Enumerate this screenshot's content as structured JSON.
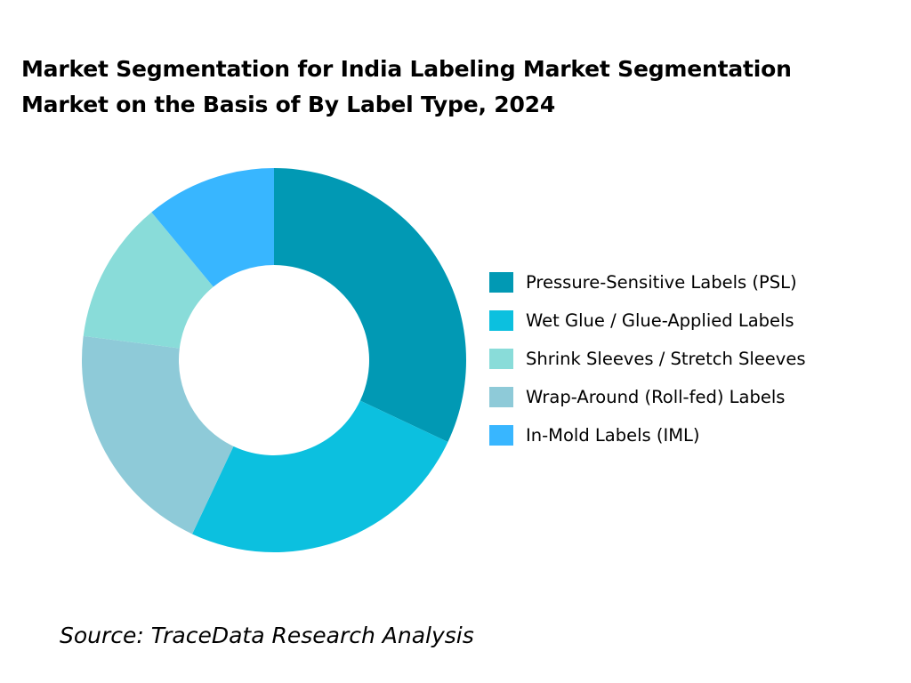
{
  "chart_data": {
    "type": "pie",
    "donut": true,
    "title": "Market Segmentation for India Labeling Market Segmentation Market on the Basis of By Label Type, 2024",
    "unit": "%",
    "start_angle": "12 o'clock",
    "direction": "clockwise",
    "slices": [
      {
        "name": "Pressure-Sensitive Labels (PSL)",
        "value": 32,
        "color": "#0199b4"
      },
      {
        "name": "Wet Glue / Glue-Applied Labels",
        "value": 25,
        "color": "#0cc0df"
      },
      {
        "name": "Wrap-Around (Roll-fed) Labels",
        "value": 20,
        "color": "#8ecad8"
      },
      {
        "name": "Shrink Sleeves / Stretch Sleeves",
        "value": 12,
        "color": "#89dcd9"
      },
      {
        "name": "In-Mold Labels (IML)",
        "value": 11,
        "color": "#38b6ff"
      }
    ],
    "legend": {
      "placement": "right",
      "items": [
        {
          "label": "Pressure-Sensitive Labels (PSL)",
          "color": "#0199b4"
        },
        {
          "label": "Wet Glue / Glue-Applied Labels",
          "color": "#0cc0df"
        },
        {
          "label": "Shrink Sleeves / Stretch Sleeves",
          "color": "#89dcd9"
        },
        {
          "label": "Wrap-Around (Roll-fed) Labels",
          "color": "#8ecad8"
        },
        {
          "label": "In-Mold Labels (IML)",
          "color": "#38b6ff"
        }
      ]
    }
  },
  "source": "Source: TraceData Research Analysis"
}
